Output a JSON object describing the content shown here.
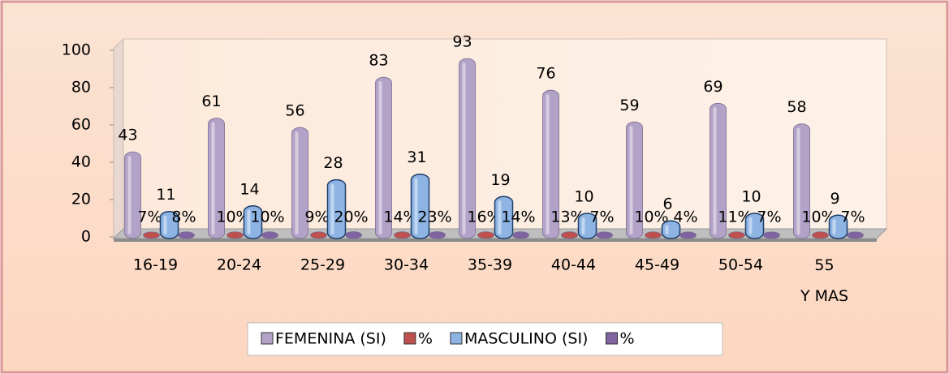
{
  "chart_data": {
    "type": "bar",
    "categories": [
      "16-19",
      "20-24",
      "25-29",
      "30-34",
      "35-39",
      "40-44",
      "45-49",
      "50-54",
      "55 Y MAS"
    ],
    "series": [
      {
        "name": "FEMENINA (SI)",
        "color": "#b3a2c7",
        "values": [
          43,
          61,
          56,
          83,
          93,
          76,
          59,
          69,
          58
        ]
      },
      {
        "name": "%",
        "color": "#c0504d",
        "values": [
          0.07,
          0.1,
          0.09,
          0.14,
          0.16,
          0.13,
          0.1,
          0.11,
          0.1
        ],
        "value_labels": [
          "7%",
          "10%",
          "9%",
          "14%",
          "16%",
          "13%",
          "10%",
          "11%",
          "10%"
        ]
      },
      {
        "name": "MASCULINO (SI)",
        "color": "#8eb4e3",
        "values": [
          11,
          14,
          28,
          31,
          19,
          10,
          6,
          10,
          9
        ]
      },
      {
        "name": "%",
        "color": "#8064a2",
        "values": [
          0.08,
          0.1,
          0.2,
          0.23,
          0.14,
          0.07,
          0.04,
          0.07,
          0.07
        ],
        "value_labels": [
          "8%",
          "10%",
          "20%",
          "23%",
          "14%",
          "7%",
          "4%",
          "7%",
          "7%"
        ]
      }
    ],
    "ylim": [
      0,
      100
    ],
    "yticks": [
      0,
      20,
      40,
      60,
      80,
      100
    ],
    "grid": false,
    "legend": "bottom"
  }
}
